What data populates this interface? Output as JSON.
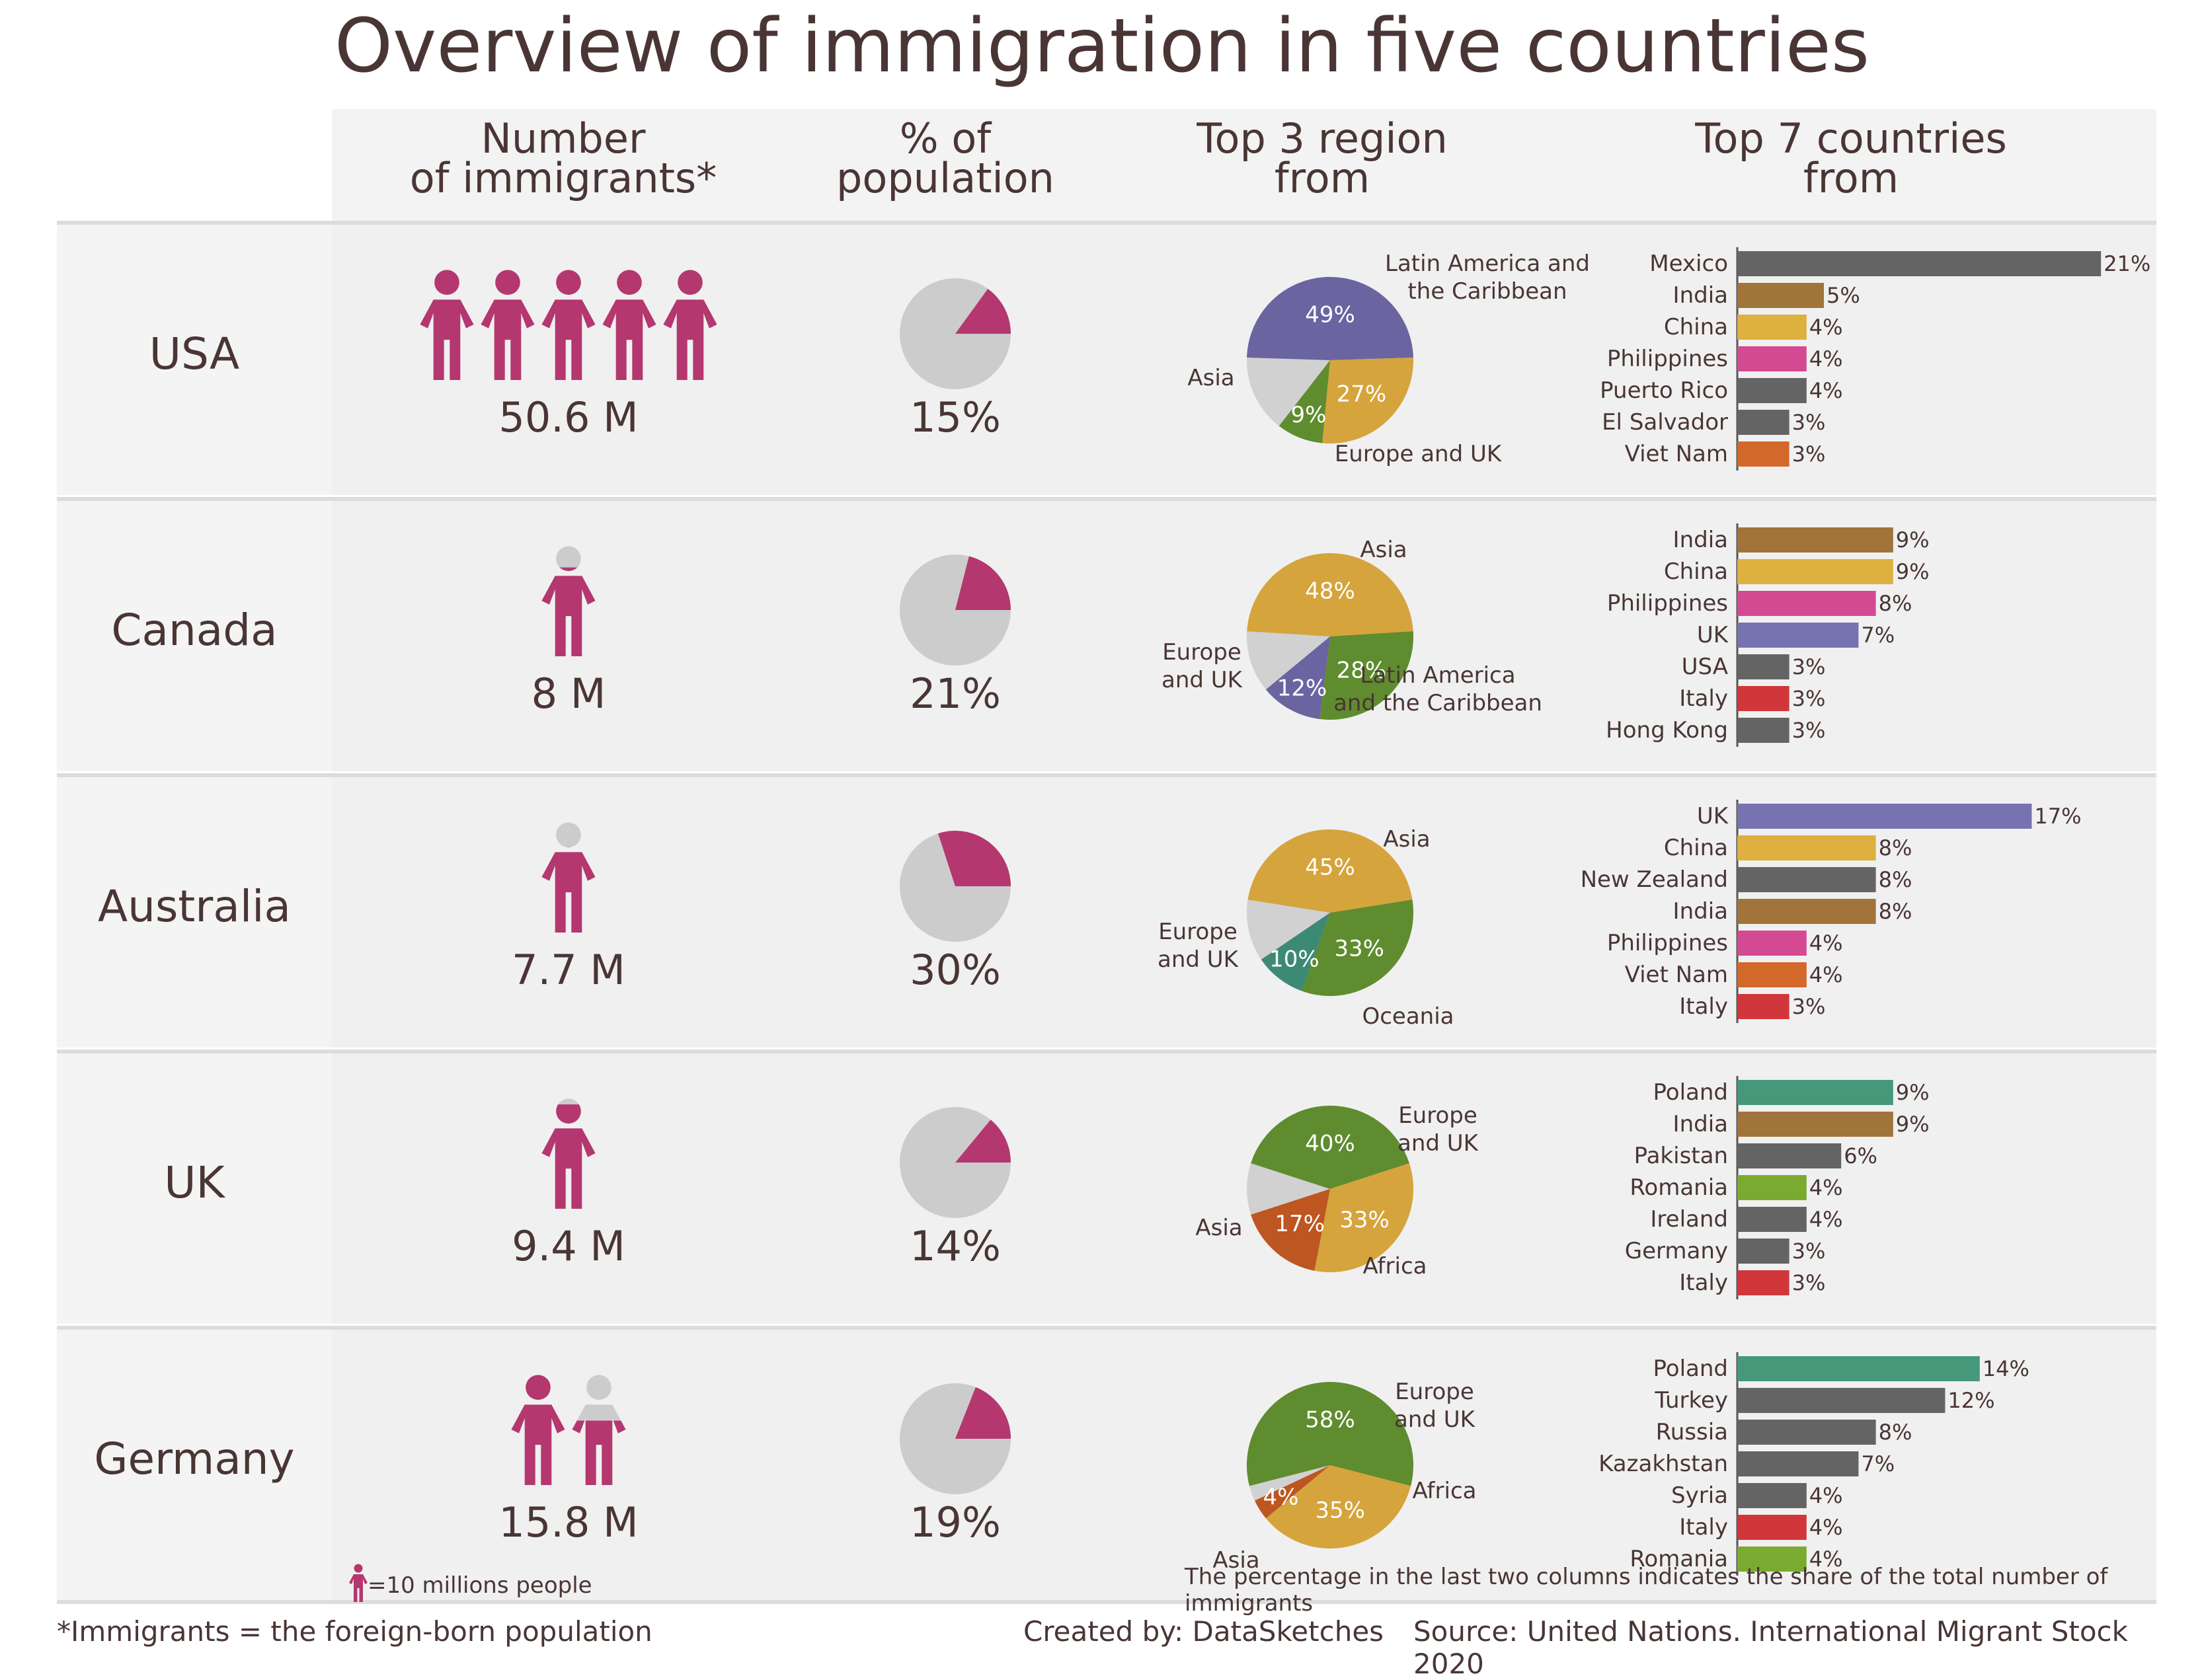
{
  "title": "Overview of immigration in five countries",
  "columns": {
    "count": "Number\nof immigrants*",
    "pct": "% of\npopulation",
    "regions": "Top 3 region\nfrom",
    "countries": "Top 7 countries\nfrom"
  },
  "footer": {
    "legend": "=10 millions people",
    "note": "The percentage in the last two columns indicates the share of the total number of immigrants",
    "definition": "*Immigrants = the foreign-born population",
    "credit": "Created by: DataSketches",
    "source": "Source: United Nations. International Migrant Stock 2020"
  },
  "colors": {
    "magenta": "#b5376f",
    "pie_gray": "#cccccc",
    "text": "#4a3535",
    "latin": "#6a64a0",
    "asia": "#d5a43c",
    "europe": "#5f8c2e",
    "oceania": "#3d8a74",
    "africa": "#bd5620",
    "other": "#d1d1d1"
  },
  "chart_data": [
    {
      "type": "table",
      "countries": [
        "USA",
        "Canada",
        "Australia",
        "UK",
        "Germany"
      ],
      "immigrants_millions": [
        50.6,
        8,
        7.7,
        9.4,
        15.8
      ],
      "immigrants_label": [
        "50.6 M",
        "8 M",
        "7.7 M",
        "9.4 M",
        "15.8 M"
      ],
      "icon_unit_millions": 10,
      "icons": [
        {
          "full": 5,
          "partial": 0
        },
        {
          "full": 0,
          "partial": 0.8
        },
        {
          "full": 0,
          "partial": 0.77
        },
        {
          "full": 0,
          "partial": 0.94
        },
        {
          "full": 1,
          "partial": 0.58
        }
      ]
    },
    {
      "type": "pie",
      "name": "% of population",
      "values": [
        15,
        21,
        30,
        14,
        19
      ],
      "labels": [
        "15%",
        "21%",
        "30%",
        "14%",
        "19%"
      ]
    },
    {
      "type": "pie",
      "name": "Top 3 region from",
      "pies": [
        {
          "country": "USA",
          "slices": [
            {
              "label": "Latin America and the Caribbean",
              "value": 49,
              "text": "49%",
              "color": "#6a64a0"
            },
            {
              "label": "Asia",
              "value": 27,
              "text": "27%",
              "color": "#d5a43c"
            },
            {
              "label": "Europe and UK",
              "value": 9,
              "text": "9%",
              "color": "#5f8c2e"
            }
          ]
        },
        {
          "country": "Canada",
          "slices": [
            {
              "label": "Asia",
              "value": 48,
              "text": "48%",
              "color": "#d5a43c"
            },
            {
              "label": "Europe and UK",
              "value": 28,
              "text": "28%",
              "color": "#5f8c2e"
            },
            {
              "label": "Latin America and the Caribbean",
              "value": 12,
              "text": "12%",
              "color": "#6a64a0"
            }
          ]
        },
        {
          "country": "Australia",
          "slices": [
            {
              "label": "Asia",
              "value": 45,
              "text": "45%",
              "color": "#d5a43c"
            },
            {
              "label": "Europe and UK",
              "value": 33,
              "text": "33%",
              "color": "#5f8c2e"
            },
            {
              "label": "Oceania",
              "value": 10,
              "text": "10%",
              "color": "#3d8a74"
            }
          ]
        },
        {
          "country": "UK",
          "slices": [
            {
              "label": "Europe and UK",
              "value": 40,
              "text": "40%",
              "color": "#5f8c2e"
            },
            {
              "label": "Asia",
              "value": 33,
              "text": "33%",
              "color": "#d5a43c"
            },
            {
              "label": "Africa",
              "value": 17,
              "text": "17%",
              "color": "#bd5620"
            }
          ]
        },
        {
          "country": "Germany",
          "slices": [
            {
              "label": "Europe and UK",
              "value": 58,
              "text": "58%",
              "color": "#5f8c2e"
            },
            {
              "label": "Asia",
              "value": 35,
              "text": "35%",
              "color": "#d5a43c"
            },
            {
              "label": "Africa",
              "value": 4,
              "text": "4%",
              "color": "#bd5620"
            }
          ]
        }
      ]
    },
    {
      "type": "bar",
      "name": "Top 7 countries from",
      "groups": [
        {
          "country": "USA",
          "categories": [
            "Mexico",
            "India",
            "China",
            "Philippines",
            "Puerto Rico",
            "El Salvador",
            "Viet Nam"
          ],
          "values": [
            21,
            5,
            4,
            4,
            4,
            3,
            3
          ],
          "colors": [
            "#646464",
            "#a0743a",
            "#ddb040",
            "#d44a92",
            "#646464",
            "#646464",
            "#d2682a"
          ]
        },
        {
          "country": "Canada",
          "categories": [
            "India",
            "China",
            "Philippines",
            "UK",
            "USA",
            "Italy",
            "Hong Kong"
          ],
          "values": [
            9,
            9,
            8,
            7,
            3,
            3,
            3
          ],
          "colors": [
            "#a0743a",
            "#ddb040",
            "#d44a92",
            "#7773b1",
            "#646464",
            "#d1373a",
            "#646464"
          ]
        },
        {
          "country": "Australia",
          "categories": [
            "UK",
            "China",
            "New Zealand",
            "India",
            "Philippines",
            "Viet Nam",
            "Italy"
          ],
          "values": [
            17,
            8,
            8,
            8,
            4,
            4,
            3
          ],
          "colors": [
            "#7773b1",
            "#ddb040",
            "#646464",
            "#a0743a",
            "#d44a92",
            "#d2682a",
            "#d1373a"
          ]
        },
        {
          "country": "UK",
          "categories": [
            "Poland",
            "India",
            "Pakistan",
            "Romania",
            "Ireland",
            "Germany",
            "Italy"
          ],
          "values": [
            9,
            9,
            6,
            4,
            4,
            3,
            3
          ],
          "colors": [
            "#45997a",
            "#a0743a",
            "#646464",
            "#7aab30",
            "#646464",
            "#646464",
            "#d1373a"
          ]
        },
        {
          "country": "Germany",
          "categories": [
            "Poland",
            "Turkey",
            "Russia",
            "Kazakhstan",
            "Syria",
            "Italy",
            "Romania"
          ],
          "values": [
            14,
            12,
            8,
            7,
            4,
            4,
            4
          ],
          "colors": [
            "#45997a",
            "#646464",
            "#646464",
            "#646464",
            "#646464",
            "#d1373a",
            "#7aab30"
          ]
        }
      ]
    }
  ]
}
